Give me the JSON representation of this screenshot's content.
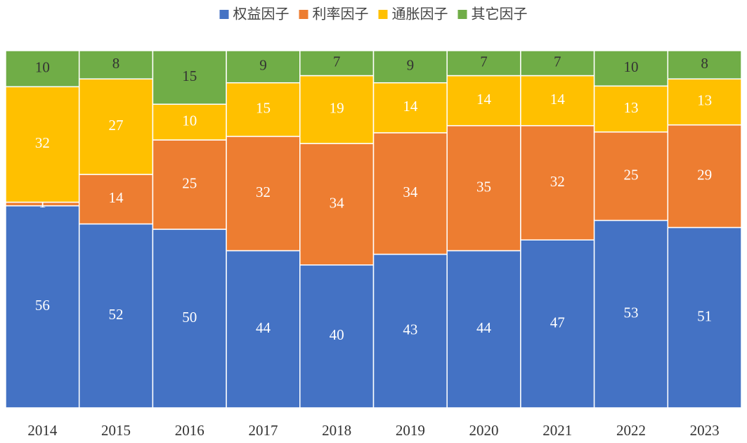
{
  "chart_data": {
    "type": "bar",
    "stacking": "percent",
    "categories": [
      "2014",
      "2015",
      "2016",
      "2017",
      "2018",
      "2019",
      "2020",
      "2021",
      "2022",
      "2023"
    ],
    "series": [
      {
        "name": "权益因子",
        "color": "#4472c4",
        "label_color": "#ffffff",
        "values": [
          56,
          52,
          50,
          44,
          40,
          43,
          44,
          47,
          53,
          51
        ]
      },
      {
        "name": "利率因子",
        "color": "#ed7d31",
        "label_color": "#ffffff",
        "values": [
          1,
          14,
          25,
          32,
          34,
          34,
          35,
          32,
          25,
          29
        ]
      },
      {
        "name": "通胀因子",
        "color": "#ffc000",
        "label_color": "#ffffff",
        "values": [
          32,
          27,
          10,
          15,
          19,
          14,
          14,
          14,
          13,
          13
        ]
      },
      {
        "name": "其它因子",
        "color": "#70ad47",
        "label_color": "#333333",
        "values": [
          10,
          8,
          15,
          9,
          7,
          9,
          7,
          7,
          10,
          8
        ]
      }
    ],
    "legend": "top"
  }
}
